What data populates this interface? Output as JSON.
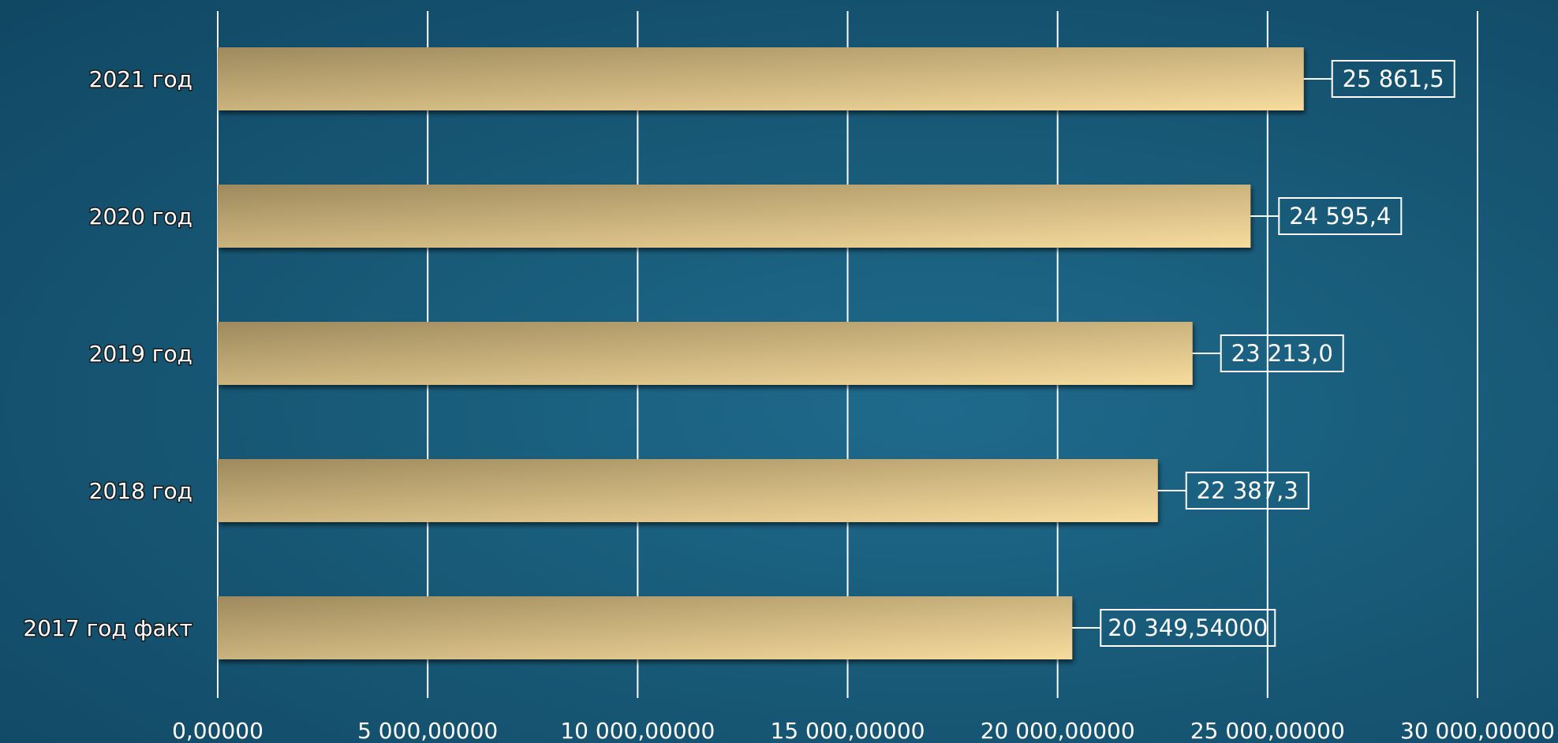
{
  "chart_data": {
    "type": "bar",
    "orientation": "horizontal",
    "categories": [
      "2021 год",
      "2020 год",
      "2019 год",
      "2018 год",
      "2017 год факт"
    ],
    "values": [
      25861.5,
      24595.4,
      23213.0,
      22387.3,
      20349.54
    ],
    "data_labels": [
      "25 861,5",
      "24 595,4",
      "23 213,0",
      "22 387,3",
      "20 349,54000"
    ],
    "xlim": [
      0,
      30000
    ],
    "xticks": [
      0,
      5000,
      10000,
      15000,
      20000,
      25000,
      30000
    ],
    "xtick_labels": [
      "0,00000",
      "5 000,00000",
      "10 000,00000",
      "15 000,00000",
      "20 000,00000",
      "25 000,00000",
      "30 000,00000"
    ],
    "title": "",
    "xlabel": "",
    "ylabel": "",
    "grid": true,
    "legend": "none",
    "colors": {
      "bar_light": "#f7dc9d",
      "bar_dark": "#9e8a5e",
      "grid": "#ffffff",
      "text": "#ffffff"
    }
  }
}
